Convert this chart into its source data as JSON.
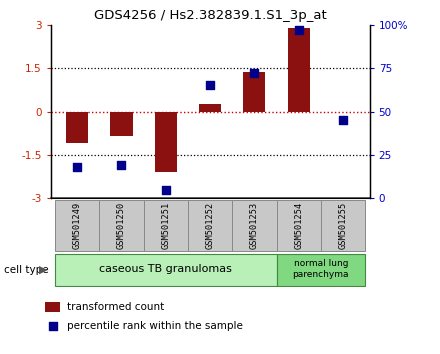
{
  "title": "GDS4256 / Hs2.382839.1.S1_3p_at",
  "samples": [
    "GSM501249",
    "GSM501250",
    "GSM501251",
    "GSM501252",
    "GSM501253",
    "GSM501254",
    "GSM501255"
  ],
  "transformed_count": [
    -1.1,
    -0.85,
    -2.1,
    0.25,
    1.35,
    2.88,
    -0.03
  ],
  "percentile_rank": [
    18,
    19,
    5,
    65,
    72,
    97,
    45
  ],
  "ylim_left": [
    -3,
    3
  ],
  "ylim_right": [
    0,
    100
  ],
  "yticks_left": [
    -3,
    -1.5,
    0,
    1.5,
    3
  ],
  "yticks_right": [
    0,
    25,
    50,
    75,
    100
  ],
  "ytick_labels_right": [
    "0",
    "25",
    "50",
    "75",
    "100%"
  ],
  "bar_color": "#8B1010",
  "dot_color": "#00008B",
  "group1_samples": [
    0,
    1,
    2,
    3,
    4
  ],
  "group2_samples": [
    5,
    6
  ],
  "group1_label": "caseous TB granulomas",
  "group2_label": "normal lung\nparenchyma",
  "group1_bg": "#b8f0b8",
  "group2_bg": "#80d880",
  "sample_bg": "#c8c8c8",
  "cell_type_label": "cell type",
  "legend_bar_label": "transformed count",
  "legend_dot_label": "percentile rank within the sample",
  "dotted_line_color": "#000000",
  "zero_line_color": "#cc0000",
  "background_color": "#ffffff",
  "bar_width": 0.5,
  "dot_size": 30
}
